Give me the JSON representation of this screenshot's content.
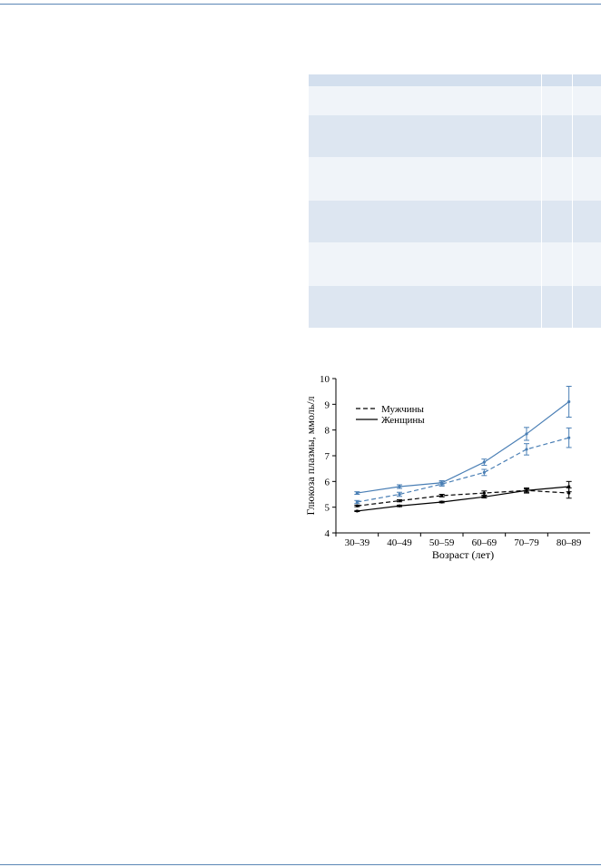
{
  "table": {
    "header_color": "#d3dfee",
    "band_dark": "#dde6f1",
    "band_light": "#f0f4f9",
    "rows": [
      {
        "tone": "header",
        "h": 13
      },
      {
        "tone": "light",
        "h": 16
      },
      {
        "tone": "light",
        "h": 16
      },
      {
        "tone": "dark",
        "h": 15
      },
      {
        "tone": "dark",
        "h": 15
      },
      {
        "tone": "dark",
        "h": 16
      },
      {
        "tone": "light",
        "h": 16
      },
      {
        "tone": "light",
        "h": 16
      },
      {
        "tone": "light",
        "h": 16
      },
      {
        "tone": "dark",
        "h": 15
      },
      {
        "tone": "dark",
        "h": 15
      },
      {
        "tone": "dark",
        "h": 16
      },
      {
        "tone": "light",
        "h": 16
      },
      {
        "tone": "light",
        "h": 16
      },
      {
        "tone": "light",
        "h": 16
      },
      {
        "tone": "dark",
        "h": 31
      },
      {
        "tone": "dark",
        "h": 15
      }
    ]
  },
  "chart_data": {
    "type": "line",
    "categories": [
      "30–39",
      "40–49",
      "50–59",
      "60–69",
      "70–79",
      "80–89"
    ],
    "xlabel": "Возраст (лет)",
    "ylabel": "Глюкоза плазмы, ммоль/л",
    "ylim": [
      4,
      10
    ],
    "yticks": [
      4,
      5,
      6,
      7,
      8,
      9,
      10
    ],
    "legend": {
      "position": "top-left",
      "entries": [
        {
          "label": "Мужчины",
          "dash": "dashed"
        },
        {
          "label": "Женщины",
          "dash": "solid"
        }
      ]
    },
    "series": [
      {
        "group": "blue",
        "dash": "solid",
        "color": "#4a7fb5",
        "values": [
          5.55,
          5.8,
          5.95,
          6.75,
          7.85,
          9.1
        ],
        "errors": [
          0.05,
          0.07,
          0.08,
          0.12,
          0.25,
          0.6
        ]
      },
      {
        "group": "blue",
        "dash": "dashed",
        "color": "#4a7fb5",
        "values": [
          5.2,
          5.5,
          5.9,
          6.35,
          7.25,
          7.7
        ],
        "errors": [
          0.06,
          0.08,
          0.08,
          0.12,
          0.22,
          0.38
        ]
      },
      {
        "group": "black",
        "dash": "dashed",
        "color": "#000000",
        "values": [
          5.05,
          5.25,
          5.45,
          5.55,
          5.65,
          5.55
        ],
        "errors": [
          0.03,
          0.04,
          0.05,
          0.08,
          0.1,
          0.2
        ]
      },
      {
        "group": "black",
        "dash": "solid",
        "color": "#000000",
        "values": [
          4.85,
          5.05,
          5.2,
          5.4,
          5.65,
          5.8
        ],
        "errors": [
          0.02,
          0.03,
          0.03,
          0.04,
          0.06,
          0.2
        ]
      }
    ]
  }
}
